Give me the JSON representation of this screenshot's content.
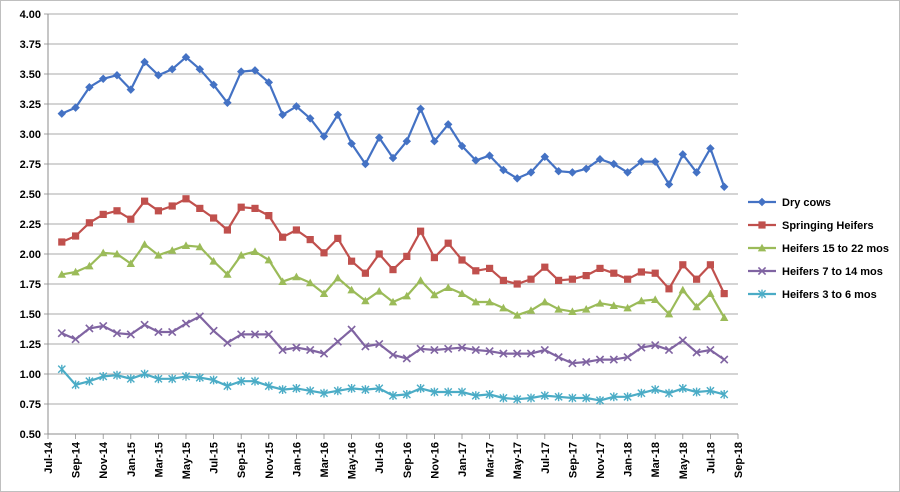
{
  "chart_data": {
    "type": "line",
    "title": "",
    "xlabel": "",
    "ylabel": "",
    "ylim": [
      0.5,
      4.0
    ],
    "y_ticks": [
      "4.00",
      "3.75",
      "3.50",
      "3.25",
      "3.00",
      "2.75",
      "2.50",
      "2.25",
      "2.00",
      "1.75",
      "1.50",
      "1.25",
      "1.00",
      "0.75",
      "0.50"
    ],
    "x_tick_labels": [
      "Jul-14",
      "Sep-14",
      "Nov-14",
      "Jan-15",
      "Mar-15",
      "May-15",
      "Jul-15",
      "Sep-15",
      "Nov-15",
      "Jan-16",
      "Mar-16",
      "May-16",
      "Jul-16",
      "Sep-16",
      "Nov-16",
      "Jan-17",
      "Mar-17",
      "May-17",
      "Jul-17",
      "Sep-17",
      "Nov-17",
      "Jan-18",
      "Mar-18",
      "May-18",
      "Jul-18",
      "Sep-18"
    ],
    "x": [
      "Sep-14",
      "Oct-14",
      "Nov-14",
      "Dec-14",
      "Jan-15",
      "Feb-15",
      "Mar-15",
      "Apr-15",
      "May-15",
      "Jun-15",
      "Jul-15",
      "Aug-15",
      "Sep-15",
      "Oct-15",
      "Nov-15",
      "Dec-15",
      "Jan-16",
      "Feb-16",
      "Mar-16",
      "Apr-16",
      "May-16",
      "Jun-16",
      "Jul-16",
      "Aug-16",
      "Sep-16",
      "Oct-16",
      "Nov-16",
      "Dec-16",
      "Jan-17",
      "Feb-17",
      "Mar-17",
      "Apr-17",
      "May-17",
      "Jun-17",
      "Jul-17",
      "Aug-17",
      "Sep-17",
      "Oct-17",
      "Nov-17",
      "Dec-17",
      "Jan-18",
      "Feb-18",
      "Mar-18",
      "Apr-18",
      "May-18",
      "Jun-18",
      "Jul-18",
      "Aug-18",
      "Sep-18"
    ],
    "grid": "horizontal",
    "legend_position": "right",
    "series": [
      {
        "name": "Dry cows",
        "color": "#4472c4",
        "marker": "diamond",
        "values": [
          3.17,
          3.22,
          3.39,
          3.46,
          3.49,
          3.37,
          3.6,
          3.49,
          3.54,
          3.64,
          3.54,
          3.41,
          3.26,
          3.52,
          3.53,
          3.43,
          3.16,
          3.23,
          3.13,
          2.98,
          3.16,
          2.92,
          2.75,
          2.97,
          2.8,
          2.94,
          3.21,
          2.94,
          3.08,
          2.9,
          2.78,
          2.82,
          2.7,
          2.63,
          2.68,
          2.81,
          2.69,
          2.68,
          2.71,
          2.79,
          2.75,
          2.68,
          2.77,
          2.77,
          2.58,
          2.83,
          2.68,
          2.88,
          2.56
        ]
      },
      {
        "name": "Springing Heifers",
        "color": "#c0504d",
        "marker": "square",
        "values": [
          2.1,
          2.15,
          2.26,
          2.33,
          2.36,
          2.29,
          2.44,
          2.36,
          2.4,
          2.46,
          2.38,
          2.3,
          2.2,
          2.39,
          2.38,
          2.32,
          2.14,
          2.2,
          2.12,
          2.01,
          2.13,
          1.94,
          1.84,
          2.0,
          1.87,
          1.98,
          2.19,
          1.97,
          2.09,
          1.95,
          1.86,
          1.88,
          1.78,
          1.75,
          1.79,
          1.89,
          1.78,
          1.79,
          1.82,
          1.88,
          1.84,
          1.79,
          1.85,
          1.84,
          1.71,
          1.91,
          1.79,
          1.91,
          1.67
        ]
      },
      {
        "name": "Heifers  15 to 22 mos",
        "color": "#9bbb59",
        "marker": "triangle",
        "values": [
          1.83,
          1.85,
          1.9,
          2.01,
          2.0,
          1.92,
          2.08,
          1.99,
          2.03,
          2.07,
          2.06,
          1.94,
          1.83,
          1.99,
          2.02,
          1.95,
          1.77,
          1.81,
          1.76,
          1.67,
          1.8,
          1.7,
          1.61,
          1.69,
          1.6,
          1.65,
          1.78,
          1.66,
          1.72,
          1.67,
          1.6,
          1.6,
          1.55,
          1.49,
          1.53,
          1.6,
          1.54,
          1.52,
          1.54,
          1.59,
          1.57,
          1.55,
          1.61,
          1.62,
          1.5,
          1.7,
          1.56,
          1.67,
          1.47
        ]
      },
      {
        "name": "Heifers  7 to 14 mos",
        "color": "#8064a2",
        "marker": "x",
        "values": [
          1.34,
          1.29,
          1.38,
          1.4,
          1.34,
          1.33,
          1.41,
          1.35,
          1.35,
          1.42,
          1.48,
          1.36,
          1.26,
          1.33,
          1.33,
          1.33,
          1.2,
          1.22,
          1.2,
          1.17,
          1.27,
          1.37,
          1.23,
          1.25,
          1.16,
          1.13,
          1.21,
          1.2,
          1.21,
          1.22,
          1.2,
          1.19,
          1.17,
          1.17,
          1.17,
          1.2,
          1.14,
          1.09,
          1.1,
          1.12,
          1.12,
          1.14,
          1.22,
          1.24,
          1.2,
          1.28,
          1.18,
          1.2,
          1.12
        ]
      },
      {
        "name": "Heifers 3 to 6 mos",
        "color": "#4bacc6",
        "marker": "asterisk",
        "values": [
          1.04,
          0.91,
          0.94,
          0.98,
          0.99,
          0.96,
          1.0,
          0.96,
          0.96,
          0.98,
          0.97,
          0.95,
          0.9,
          0.94,
          0.94,
          0.9,
          0.87,
          0.88,
          0.86,
          0.84,
          0.86,
          0.88,
          0.87,
          0.88,
          0.82,
          0.83,
          0.88,
          0.85,
          0.85,
          0.85,
          0.82,
          0.83,
          0.8,
          0.79,
          0.8,
          0.82,
          0.81,
          0.8,
          0.8,
          0.78,
          0.81,
          0.81,
          0.84,
          0.87,
          0.84,
          0.88,
          0.85,
          0.86,
          0.83
        ]
      }
    ]
  }
}
